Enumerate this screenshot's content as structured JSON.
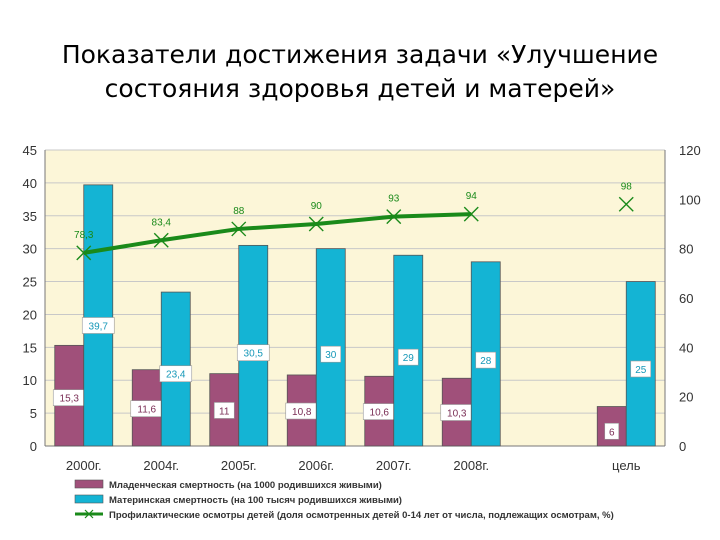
{
  "title_line1": "Показатели достижения задачи «Улучшение",
  "title_line2": "состояния здоровья детей и матерей»",
  "chart_data": {
    "type": "bar",
    "categories": [
      "2000г.",
      "2004г.",
      "2005г.",
      "2006г.",
      "2007г.",
      "2008г.",
      "",
      "цель"
    ],
    "series": [
      {
        "name": "Младенческая смертность (на 1000 родившихся живыми)",
        "type": "bar",
        "axis": "left",
        "values": [
          15.3,
          11.6,
          11,
          10.8,
          10.6,
          10.3,
          null,
          6
        ],
        "labels": [
          "15,3",
          "11,6",
          "11",
          "10,8",
          "10,6",
          "10,3",
          "",
          "6"
        ],
        "color": "#a0507a"
      },
      {
        "name": "Материнская смертность (на 100 тысяч родившихся живыми)",
        "type": "bar",
        "axis": "left",
        "values": [
          39.7,
          23.4,
          30.5,
          30,
          29,
          28,
          null,
          25
        ],
        "labels": [
          "39,7",
          "23,4",
          "30,5",
          "30",
          "29",
          "28",
          "",
          "25"
        ],
        "color": "#14b4d4"
      },
      {
        "name": "Профилактические осмотры детей (доля осмотренных детей 0-14 лет от числа, подлежащих осмотрам, %)",
        "type": "line",
        "axis": "right",
        "values": [
          78.3,
          83.4,
          88,
          90,
          93,
          94,
          null,
          98
        ],
        "labels": [
          "78,3",
          "83,4",
          "88",
          "90",
          "93",
          "94",
          "",
          "98"
        ],
        "color": "#1a8a1a"
      }
    ],
    "y_left": {
      "min": 0,
      "max": 45,
      "ticks": [
        "0",
        "5",
        "10",
        "15",
        "20",
        "25",
        "30",
        "35",
        "40",
        "45"
      ]
    },
    "y_right": {
      "min": 0,
      "max": 120,
      "ticks": [
        "0",
        "20",
        "40",
        "60",
        "80",
        "100",
        "120"
      ]
    },
    "grid": true,
    "legend_position": "bottom-left"
  }
}
